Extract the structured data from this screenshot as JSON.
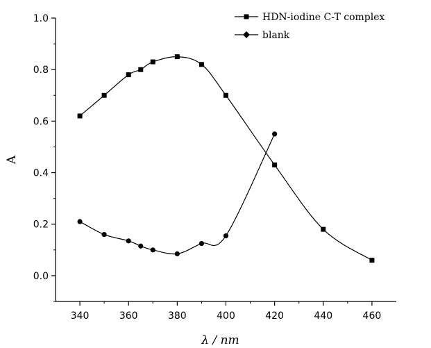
{
  "chart_data": {
    "type": "line",
    "xlabel": "λ / nm",
    "ylabel": "A",
    "xlim": [
      330,
      470
    ],
    "ylim": [
      -0.1,
      1.0
    ],
    "x_ticks": [
      340,
      360,
      380,
      400,
      420,
      440,
      460
    ],
    "y_ticks": [
      0.0,
      0.2,
      0.4,
      0.6,
      0.8,
      1.0
    ],
    "x_tick_labels": [
      "340",
      "360",
      "380",
      "400",
      "420",
      "440",
      "460"
    ],
    "y_tick_labels": [
      "0.0",
      "0.2",
      "0.4",
      "0.6",
      "0.8",
      "1.0"
    ],
    "grid": false,
    "legend_position": "top-right",
    "series": [
      {
        "name": "HDN-iodine C-T complex",
        "marker": "square",
        "color": "#000000",
        "x": [
          340,
          350,
          360,
          365,
          370,
          380,
          390,
          400,
          420,
          440,
          460
        ],
        "y": [
          0.62,
          0.7,
          0.78,
          0.8,
          0.83,
          0.85,
          0.82,
          0.7,
          0.43,
          0.18,
          0.06
        ]
      },
      {
        "name": "blank",
        "marker": "circle",
        "color": "#000000",
        "x": [
          340,
          350,
          360,
          365,
          370,
          380,
          390,
          400,
          420
        ],
        "y": [
          0.21,
          0.16,
          0.135,
          0.115,
          0.1,
          0.085,
          0.125,
          0.155,
          0.55
        ]
      }
    ]
  }
}
